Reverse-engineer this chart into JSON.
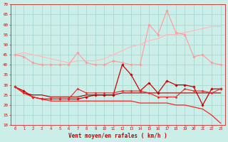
{
  "x": [
    0,
    1,
    2,
    3,
    4,
    5,
    6,
    7,
    8,
    9,
    10,
    11,
    12,
    13,
    14,
    15,
    16,
    17,
    18,
    19,
    20,
    21,
    22,
    23
  ],
  "background_color": "#cceee8",
  "grid_color": "#aad8d2",
  "xlabel": "Vent moyen/en rafales ( km/h )",
  "xlabel_color": "#cc0000",
  "ylim": [
    10,
    70
  ],
  "yticks": [
    10,
    15,
    20,
    25,
    30,
    35,
    40,
    45,
    50,
    55,
    60,
    65,
    70
  ],
  "lines": [
    {
      "values": [
        45,
        46,
        45,
        44,
        43,
        42,
        41,
        42,
        42,
        42,
        43,
        45,
        47,
        49,
        50,
        52,
        53,
        55,
        55,
        56,
        57,
        58,
        59,
        59
      ],
      "color": "#ffbbbb",
      "linewidth": 0.9,
      "marker": null,
      "markersize": 0
    },
    {
      "values": [
        45,
        44,
        41,
        40,
        40,
        40,
        40,
        46,
        41,
        40,
        40,
        42,
        41,
        40,
        40,
        60,
        55,
        67,
        56,
        55,
        44,
        45,
        41,
        40
      ],
      "color": "#ff9999",
      "linewidth": 0.8,
      "marker": "D",
      "markersize": 1.8
    },
    {
      "values": [
        29,
        27,
        24,
        23,
        23,
        23,
        23,
        23,
        24,
        25,
        25,
        25,
        40,
        35,
        27,
        31,
        26,
        32,
        30,
        30,
        29,
        20,
        28,
        28
      ],
      "color": "#cc0000",
      "linewidth": 0.9,
      "marker": "D",
      "markersize": 1.8
    },
    {
      "values": [
        29,
        26,
        25,
        25,
        24,
        24,
        24,
        24,
        25,
        25,
        25,
        25,
        26,
        26,
        26,
        26,
        26,
        26,
        26,
        26,
        26,
        26,
        26,
        26
      ],
      "color": "#990000",
      "linewidth": 0.8,
      "marker": null,
      "markersize": 0
    },
    {
      "values": [
        29,
        26,
        24,
        23,
        23,
        23,
        23,
        28,
        26,
        26,
        26,
        26,
        27,
        27,
        27,
        26,
        24,
        24,
        24,
        28,
        27,
        27,
        26,
        28
      ],
      "color": "#ee2222",
      "linewidth": 0.8,
      "marker": "D",
      "markersize": 1.5
    },
    {
      "values": [
        29,
        26,
        24,
        23,
        22,
        22,
        22,
        22,
        22,
        22,
        22,
        22,
        22,
        22,
        21,
        21,
        21,
        21,
        20,
        20,
        19,
        18,
        15,
        11
      ],
      "color": "#ff2222",
      "linewidth": 0.9,
      "marker": null,
      "markersize": 0
    }
  ],
  "arrows_up_indices": [
    0,
    1,
    2,
    3,
    4,
    5,
    6,
    7,
    8,
    9,
    10,
    11,
    12,
    13,
    14
  ],
  "arrows_down_indices": [
    15,
    16,
    17,
    18,
    19,
    20,
    21,
    22,
    23
  ],
  "arrow_color": "#ff9999"
}
